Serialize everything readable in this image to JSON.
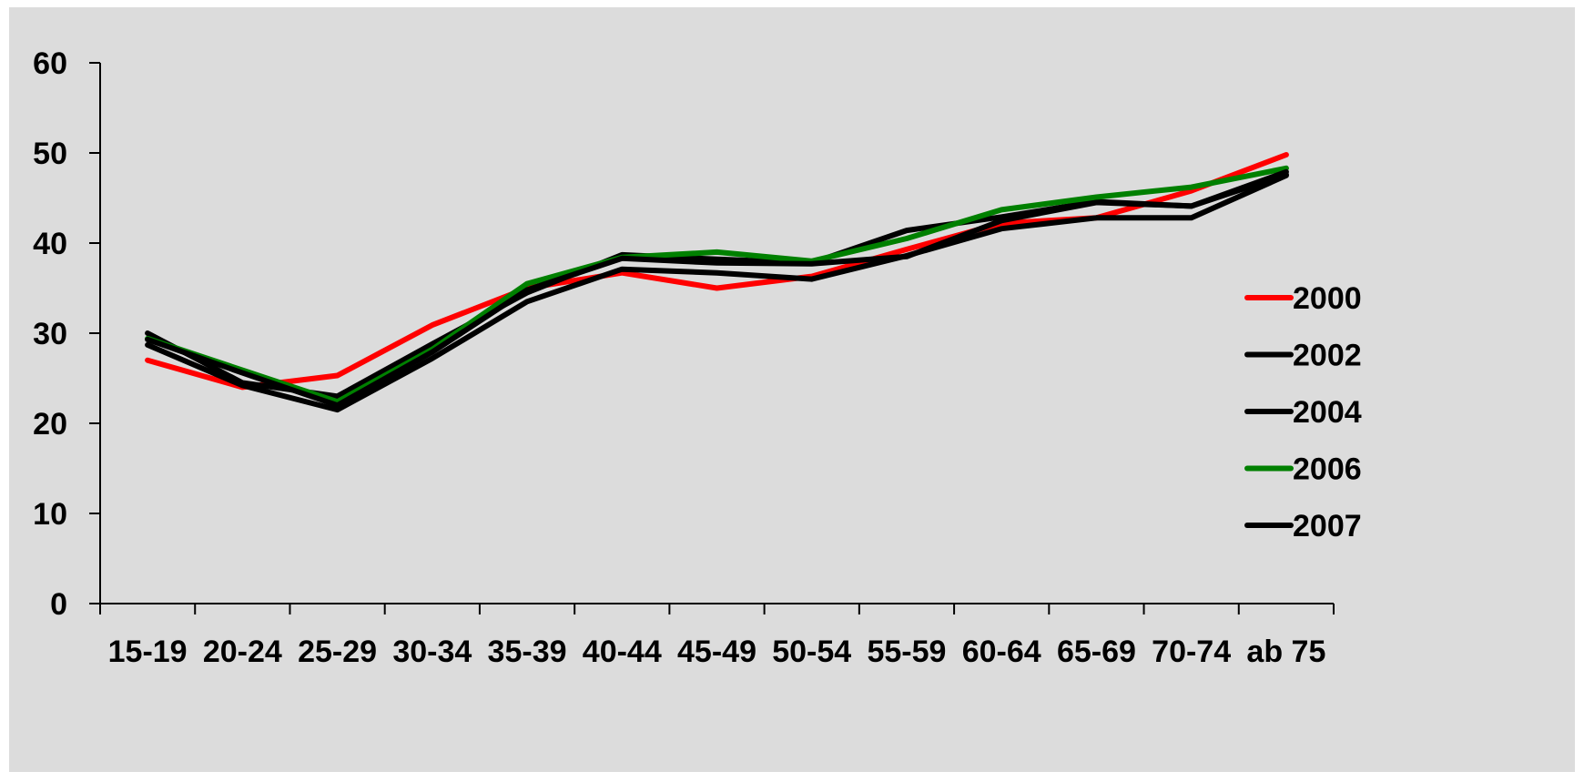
{
  "chart_data": {
    "type": "line",
    "title": "",
    "xlabel": "",
    "ylabel": "",
    "categories": [
      "15-19",
      "20-24",
      "25-29",
      "30-34",
      "35-39",
      "40-44",
      "45-49",
      "50-54",
      "55-59",
      "60-64",
      "65-69",
      "70-74",
      "ab 75"
    ],
    "yticks": [
      "0",
      "10",
      "20",
      "30",
      "40",
      "50",
      "60"
    ],
    "ylim": [
      0,
      60
    ],
    "grid": false,
    "legend": "right",
    "series": [
      {
        "name": "2000",
        "color": "#ff0000",
        "values": [
          27.0,
          24.0,
          25.3,
          30.9,
          35.0,
          36.7,
          35.0,
          36.3,
          39.3,
          42.2,
          42.8,
          45.8,
          49.8
        ]
      },
      {
        "name": "2002",
        "color": "#000000",
        "values": [
          30.0,
          24.5,
          23.0,
          28.8,
          34.5,
          38.7,
          38.2,
          37.8,
          41.4,
          42.9,
          44.6,
          44.1,
          47.6
        ]
      },
      {
        "name": "2004",
        "color": "#000000",
        "values": [
          28.7,
          24.2,
          21.5,
          27.2,
          33.5,
          37.1,
          36.7,
          36.0,
          38.6,
          41.6,
          42.8,
          42.8,
          47.5
        ]
      },
      {
        "name": "2006",
        "color": "#008000",
        "values": [
          29.4,
          25.9,
          22.4,
          28.2,
          35.5,
          38.4,
          39.0,
          38.0,
          40.5,
          43.7,
          45.1,
          46.2,
          48.3
        ]
      },
      {
        "name": "2007",
        "color": "#000000",
        "values": [
          29.3,
          25.6,
          22.0,
          27.9,
          34.8,
          38.3,
          37.8,
          37.7,
          38.5,
          42.5,
          44.5,
          44.1,
          47.9
        ]
      }
    ]
  }
}
